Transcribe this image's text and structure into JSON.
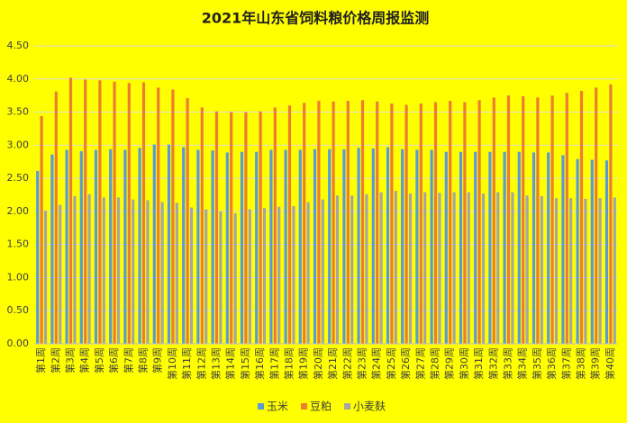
{
  "chart_data": {
    "type": "bar",
    "title": "2021年山东省饲料粮价格周报监测",
    "categories": [
      "第1周",
      "第2周",
      "第3周",
      "第4周",
      "第5周",
      "第6周",
      "第7周",
      "第8周",
      "第9周",
      "第10周",
      "第11周",
      "第12周",
      "第13周",
      "第14周",
      "第15周",
      "第16周",
      "第17周",
      "第18周",
      "第19周",
      "第20周",
      "第21周",
      "第22周",
      "第23周",
      "第24周",
      "第25周",
      "第26周",
      "第27周",
      "第28周",
      "第29周",
      "第30周",
      "第31周",
      "第32周",
      "第33周",
      "第34周",
      "第35周",
      "第36周",
      "第37周",
      "第38周",
      "第39周",
      "第40周"
    ],
    "series": [
      {
        "name": "玉米",
        "color": "#5b9bd5",
        "values": [
          2.61,
          2.86,
          2.93,
          2.91,
          2.93,
          2.94,
          2.93,
          2.96,
          3.01,
          3.01,
          2.97,
          2.93,
          2.92,
          2.89,
          2.9,
          2.9,
          2.93,
          2.93,
          2.93,
          2.94,
          2.94,
          2.94,
          2.96,
          2.95,
          2.97,
          2.94,
          2.93,
          2.93,
          2.9,
          2.9,
          2.9,
          2.9,
          2.9,
          2.9,
          2.89,
          2.89,
          2.85,
          2.79,
          2.78,
          2.77
        ]
      },
      {
        "name": "豆粕",
        "color": "#ed7d31",
        "values": [
          3.44,
          3.81,
          4.02,
          3.99,
          3.98,
          3.96,
          3.94,
          3.95,
          3.87,
          3.84,
          3.71,
          3.57,
          3.51,
          3.5,
          3.5,
          3.51,
          3.57,
          3.6,
          3.64,
          3.67,
          3.66,
          3.67,
          3.68,
          3.66,
          3.63,
          3.61,
          3.63,
          3.65,
          3.67,
          3.65,
          3.68,
          3.72,
          3.75,
          3.74,
          3.72,
          3.75,
          3.79,
          3.82,
          3.87,
          3.92
        ]
      },
      {
        "name": "小麦麸",
        "color": "#a5a5a5",
        "values": [
          2.01,
          2.1,
          2.23,
          2.26,
          2.21,
          2.21,
          2.18,
          2.17,
          2.14,
          2.13,
          2.06,
          2.03,
          2.0,
          1.97,
          2.03,
          2.05,
          2.07,
          2.08,
          2.14,
          2.18,
          2.24,
          2.24,
          2.26,
          2.29,
          2.31,
          2.27,
          2.29,
          2.28,
          2.29,
          2.29,
          2.27,
          2.29,
          2.29,
          2.24,
          2.23,
          2.2,
          2.2,
          2.19,
          2.2,
          2.21
        ]
      }
    ],
    "ylim": [
      0,
      4.5
    ],
    "yticks": [
      {
        "value": 0,
        "label": "0.00"
      },
      {
        "value": 0.5,
        "label": "0.50"
      },
      {
        "value": 1,
        "label": "1.00"
      },
      {
        "value": 1.5,
        "label": "1.50"
      },
      {
        "value": 2,
        "label": "2.00"
      },
      {
        "value": 2.5,
        "label": "2.50"
      },
      {
        "value": 3,
        "label": "3.00"
      },
      {
        "value": 3.5,
        "label": "3.50"
      },
      {
        "value": 4,
        "label": "4.00"
      },
      {
        "value": 4.5,
        "label": "4.50"
      }
    ],
    "grid": true,
    "legend": "bottom"
  }
}
